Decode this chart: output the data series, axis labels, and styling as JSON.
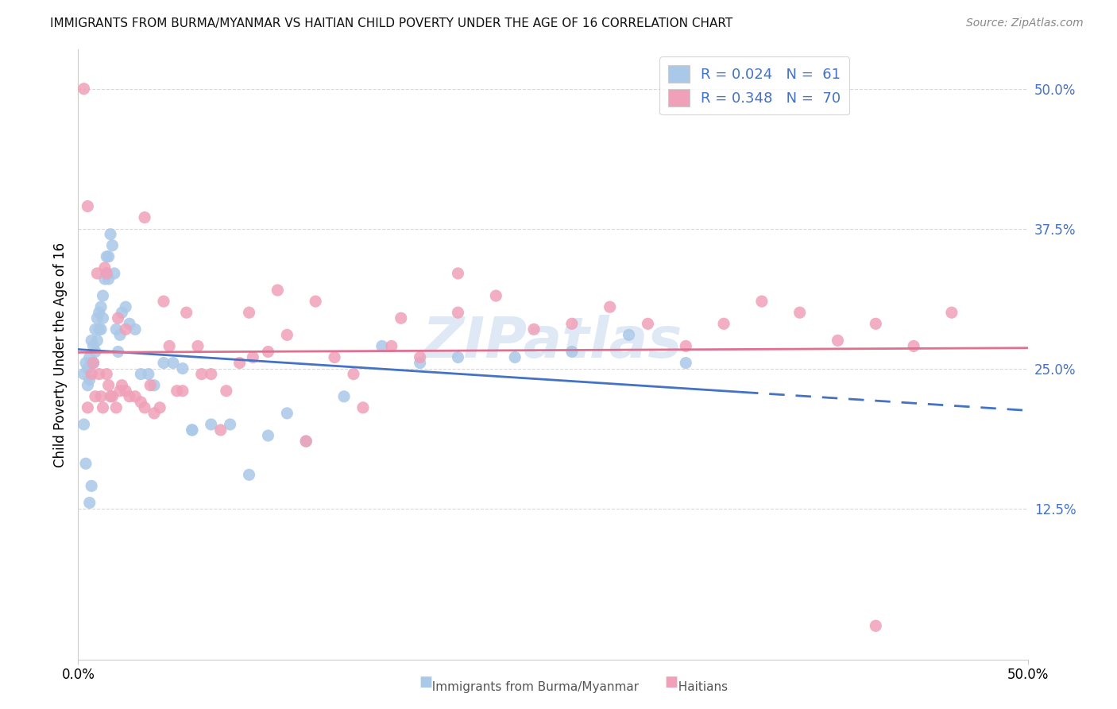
{
  "title": "IMMIGRANTS FROM BURMA/MYANMAR VS HAITIAN CHILD POVERTY UNDER THE AGE OF 16 CORRELATION CHART",
  "source": "Source: ZipAtlas.com",
  "ylabel": "Child Poverty Under the Age of 16",
  "ytick_vals": [
    0.5,
    0.375,
    0.25,
    0.125
  ],
  "ytick_labels": [
    "50.0%",
    "37.5%",
    "25.0%",
    "12.5%"
  ],
  "xlim": [
    0.0,
    0.5
  ],
  "ylim": [
    -0.01,
    0.535
  ],
  "color_blue": "#aac8e8",
  "color_pink": "#f0a0b8",
  "color_blue_line": "#4472c4",
  "color_pink_line": "#e07090",
  "color_blue_text": "#4472c4",
  "watermark": "ZIPatlas",
  "legend_line1": "R = 0.024   N =  61",
  "legend_line2": "R = 0.348   N =  70",
  "bottom_label1": "Immigrants from Burma/Myanmar",
  "bottom_label2": "Haitians",
  "blue_x": [
    0.003,
    0.004,
    0.005,
    0.005,
    0.006,
    0.006,
    0.007,
    0.007,
    0.008,
    0.008,
    0.009,
    0.009,
    0.01,
    0.01,
    0.011,
    0.011,
    0.012,
    0.012,
    0.013,
    0.013,
    0.014,
    0.015,
    0.015,
    0.016,
    0.016,
    0.017,
    0.018,
    0.019,
    0.02,
    0.021,
    0.022,
    0.023,
    0.025,
    0.027,
    0.03,
    0.033,
    0.037,
    0.04,
    0.045,
    0.05,
    0.055,
    0.06,
    0.07,
    0.08,
    0.09,
    0.1,
    0.11,
    0.12,
    0.14,
    0.16,
    0.18,
    0.2,
    0.23,
    0.26,
    0.29,
    0.32,
    0.003,
    0.004,
    0.006,
    0.007,
    0.06
  ],
  "blue_y": [
    0.245,
    0.255,
    0.235,
    0.25,
    0.26,
    0.24,
    0.275,
    0.255,
    0.27,
    0.255,
    0.285,
    0.265,
    0.295,
    0.275,
    0.3,
    0.285,
    0.305,
    0.285,
    0.315,
    0.295,
    0.33,
    0.35,
    0.335,
    0.35,
    0.33,
    0.37,
    0.36,
    0.335,
    0.285,
    0.265,
    0.28,
    0.3,
    0.305,
    0.29,
    0.285,
    0.245,
    0.245,
    0.235,
    0.255,
    0.255,
    0.25,
    0.195,
    0.2,
    0.2,
    0.155,
    0.19,
    0.21,
    0.185,
    0.225,
    0.27,
    0.255,
    0.26,
    0.26,
    0.265,
    0.28,
    0.255,
    0.2,
    0.165,
    0.13,
    0.145,
    0.195
  ],
  "pink_x": [
    0.003,
    0.005,
    0.007,
    0.008,
    0.009,
    0.01,
    0.011,
    0.012,
    0.013,
    0.014,
    0.015,
    0.016,
    0.017,
    0.018,
    0.02,
    0.021,
    0.022,
    0.023,
    0.025,
    0.027,
    0.03,
    0.033,
    0.035,
    0.038,
    0.04,
    0.043,
    0.048,
    0.052,
    0.057,
    0.063,
    0.07,
    0.078,
    0.085,
    0.092,
    0.1,
    0.11,
    0.12,
    0.135,
    0.15,
    0.165,
    0.18,
    0.2,
    0.22,
    0.24,
    0.26,
    0.28,
    0.3,
    0.32,
    0.34,
    0.36,
    0.38,
    0.4,
    0.42,
    0.44,
    0.46,
    0.005,
    0.015,
    0.025,
    0.035,
    0.045,
    0.055,
    0.065,
    0.075,
    0.09,
    0.105,
    0.125,
    0.145,
    0.17,
    0.2,
    0.42
  ],
  "pink_y": [
    0.5,
    0.215,
    0.245,
    0.255,
    0.225,
    0.335,
    0.245,
    0.225,
    0.215,
    0.34,
    0.245,
    0.235,
    0.225,
    0.225,
    0.215,
    0.295,
    0.23,
    0.235,
    0.23,
    0.225,
    0.225,
    0.22,
    0.215,
    0.235,
    0.21,
    0.215,
    0.27,
    0.23,
    0.3,
    0.27,
    0.245,
    0.23,
    0.255,
    0.26,
    0.265,
    0.28,
    0.185,
    0.26,
    0.215,
    0.27,
    0.26,
    0.3,
    0.315,
    0.285,
    0.29,
    0.305,
    0.29,
    0.27,
    0.29,
    0.31,
    0.3,
    0.275,
    0.29,
    0.27,
    0.3,
    0.395,
    0.335,
    0.285,
    0.385,
    0.31,
    0.23,
    0.245,
    0.195,
    0.3,
    0.32,
    0.31,
    0.245,
    0.295,
    0.335,
    0.02
  ]
}
